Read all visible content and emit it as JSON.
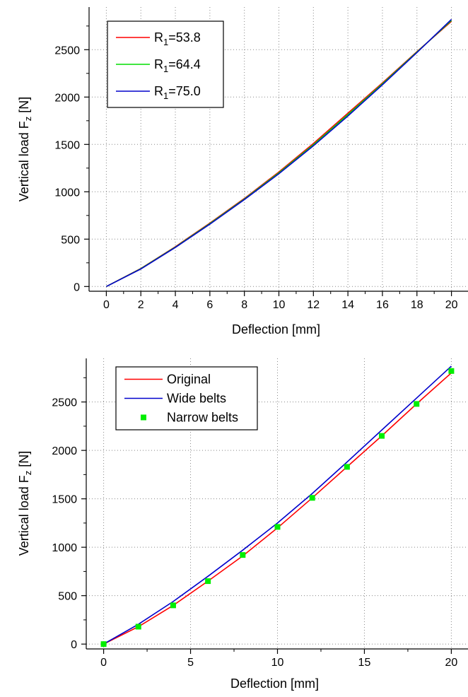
{
  "chart_data": [
    {
      "type": "line",
      "xlabel": "Deflection [mm]",
      "ylabel_main": "Vertical load F",
      "ylabel_sub": "z",
      "ylabel_unit": " [N]",
      "xlim": [
        -1,
        21
      ],
      "ylim": [
        -50,
        2950
      ],
      "xticks": [
        0,
        2,
        4,
        6,
        8,
        10,
        12,
        14,
        16,
        18,
        20
      ],
      "yticks": [
        0,
        500,
        1000,
        1500,
        2000,
        2500
      ],
      "grid": true,
      "legend_position": "top-left",
      "x": [
        0,
        2,
        4,
        6,
        8,
        10,
        12,
        14,
        16,
        18,
        20
      ],
      "series": [
        {
          "name_main": "R",
          "name_sub": "1",
          "name_rest": "=53.8",
          "color": "#ff0000",
          "style": "line",
          "values": [
            0,
            190,
            420,
            670,
            930,
            1210,
            1510,
            1830,
            2150,
            2480,
            2800
          ]
        },
        {
          "name_main": "R",
          "name_sub": "1",
          "name_rest": "=64.4",
          "color": "#00dd00",
          "style": "line",
          "values": [
            0,
            188,
            416,
            664,
            924,
            1200,
            1497,
            1815,
            2140,
            2475,
            2810
          ]
        },
        {
          "name_main": "R",
          "name_sub": "1",
          "name_rest": "=75.0",
          "color": "#0000cc",
          "style": "line",
          "values": [
            0,
            185,
            412,
            658,
            918,
            1190,
            1485,
            1800,
            2130,
            2470,
            2820
          ]
        }
      ]
    },
    {
      "type": "line",
      "xlabel": "Deflection [mm]",
      "ylabel_main": "Vertical load F",
      "ylabel_sub": "z",
      "ylabel_unit": " [N]",
      "xlim": [
        -1,
        21
      ],
      "ylim": [
        -50,
        2950
      ],
      "xticks": [
        0,
        5,
        10,
        15,
        20
      ],
      "yticks": [
        0,
        500,
        1000,
        1500,
        2000,
        2500
      ],
      "grid": true,
      "legend_position": "top-left",
      "x": [
        0,
        2,
        4,
        6,
        8,
        10,
        12,
        14,
        16,
        18,
        20
      ],
      "series": [
        {
          "name_main": "Original",
          "color": "#ff0000",
          "style": "line",
          "values": [
            0,
            180,
            400,
            650,
            910,
            1200,
            1510,
            1830,
            2150,
            2480,
            2800
          ]
        },
        {
          "name_main": "Wide belts",
          "color": "#0000cc",
          "style": "line",
          "values": [
            0,
            205,
            440,
            700,
            970,
            1250,
            1555,
            1880,
            2210,
            2540,
            2870
          ]
        },
        {
          "name_main": "Narrow belts",
          "color": "#00ee00",
          "style": "marker",
          "values": [
            0,
            180,
            400,
            650,
            920,
            1210,
            1510,
            1830,
            2150,
            2480,
            2820
          ]
        }
      ]
    }
  ]
}
